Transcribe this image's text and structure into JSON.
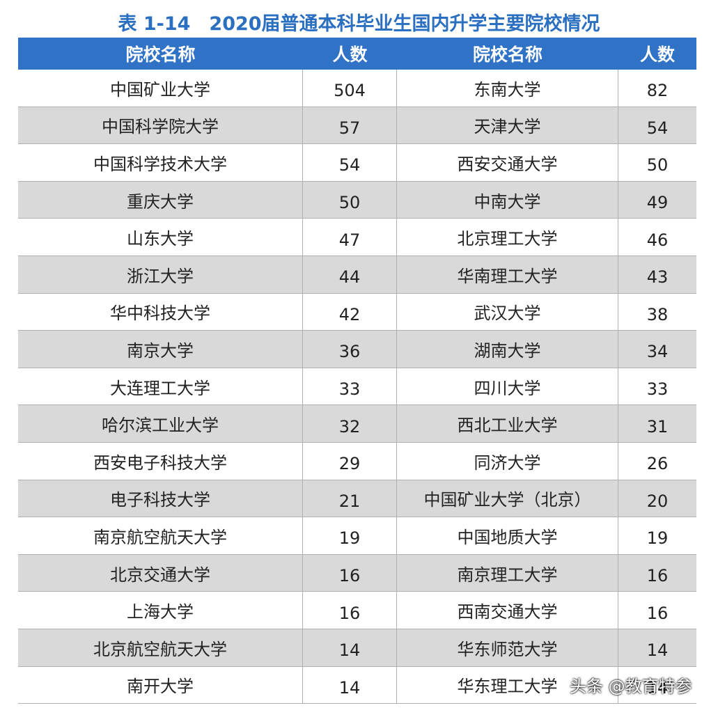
{
  "title": "表 1-14　2020届普通本科毕业生国内升学主要院校情况",
  "table": {
    "header": [
      "院校名称",
      "人数",
      "院校名称",
      "人数"
    ],
    "rows": [
      [
        "中国矿业大学",
        504,
        "东南大学",
        82
      ],
      [
        "中国科学院大学",
        57,
        "天津大学",
        54
      ],
      [
        "中国科学技术大学",
        54,
        "西安交通大学",
        50
      ],
      [
        "重庆大学",
        50,
        "中南大学",
        49
      ],
      [
        "山东大学",
        47,
        "北京理工大学",
        46
      ],
      [
        "浙江大学",
        44,
        "华南理工大学",
        43
      ],
      [
        "华中科技大学",
        42,
        "武汉大学",
        38
      ],
      [
        "南京大学",
        36,
        "湖南大学",
        34
      ],
      [
        "大连理工大学",
        33,
        "四川大学",
        33
      ],
      [
        "哈尔滨工业大学",
        32,
        "西北工业大学",
        31
      ],
      [
        "西安电子科技大学",
        29,
        "同济大学",
        26
      ],
      [
        "电子科技大学",
        21,
        "中国矿业大学（北京）",
        20
      ],
      [
        "南京航空航天大学",
        19,
        "中国地质大学",
        19
      ],
      [
        "北京交通大学",
        16,
        "南京理工大学",
        16
      ],
      [
        "上海大学",
        16,
        "西南交通大学",
        16
      ],
      [
        "北京航空航天大学",
        14,
        "华东师范大学",
        14
      ],
      [
        "南开大学",
        14,
        "华东理工大学",
        14
      ]
    ]
  },
  "watermark": "头条 @教育特参"
}
